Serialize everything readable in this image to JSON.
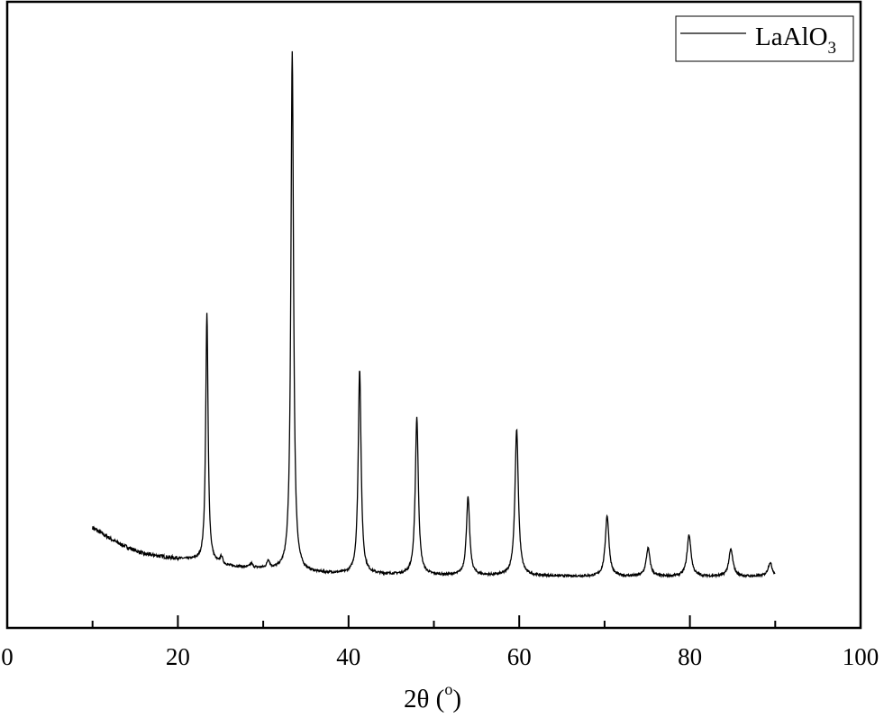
{
  "chart_data": {
    "type": "line",
    "title": "",
    "xlabel": "2θ (",
    "xlabel_degree": "o",
    "xlabel_close": ")",
    "ylabel": "",
    "xlim": [
      0,
      100
    ],
    "ylim": [
      0,
      100
    ],
    "x_ticks": [
      0,
      20,
      40,
      60,
      80,
      100
    ],
    "x_tick_labels": [
      "0",
      "20",
      "40",
      "60",
      "80",
      "100"
    ],
    "x_minor_ticks": [
      10,
      30,
      50,
      70,
      90
    ],
    "y_ticks_shown": false,
    "grid": false,
    "legend": {
      "placement": "top-right",
      "label": "LaAlO",
      "label_subscript": "3"
    },
    "series": [
      {
        "name": "LaAlO3",
        "color": "#000000",
        "x_range": [
          10,
          90
        ],
        "background": [
          [
            10,
            16.0
          ],
          [
            13,
            13.5
          ],
          [
            16,
            11.8
          ],
          [
            19,
            11.2
          ],
          [
            22,
            10.8
          ],
          [
            26,
            9.8
          ],
          [
            30,
            9.4
          ],
          [
            35,
            8.8
          ],
          [
            40,
            8.6
          ],
          [
            50,
            8.4
          ],
          [
            60,
            8.3
          ],
          [
            70,
            8.2
          ],
          [
            90,
            8.2
          ]
        ],
        "peaks": [
          {
            "two_theta": 23.4,
            "intensity": 50.2
          },
          {
            "two_theta": 25.1,
            "intensity": 11.2
          },
          {
            "two_theta": 28.6,
            "intensity": 10.2
          },
          {
            "two_theta": 30.6,
            "intensity": 10.6
          },
          {
            "two_theta": 33.4,
            "intensity": 91.9
          },
          {
            "two_theta": 41.3,
            "intensity": 41.3
          },
          {
            "two_theta": 48.0,
            "intensity": 33.6
          },
          {
            "two_theta": 54.0,
            "intensity": 20.8
          },
          {
            "two_theta": 59.7,
            "intensity": 31.6
          },
          {
            "two_theta": 70.3,
            "intensity": 17.9
          },
          {
            "two_theta": 75.1,
            "intensity": 12.7
          },
          {
            "two_theta": 79.9,
            "intensity": 14.8
          },
          {
            "two_theta": 84.8,
            "intensity": 12.5
          },
          {
            "two_theta": 89.4,
            "intensity": 10.4
          }
        ]
      }
    ]
  }
}
